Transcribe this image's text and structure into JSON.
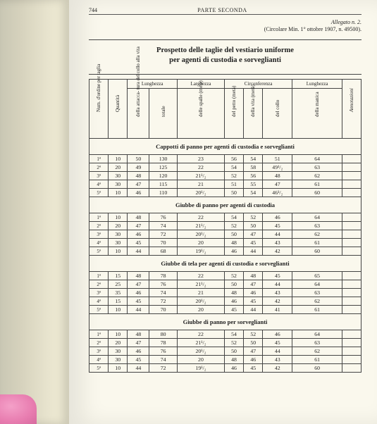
{
  "pageNumber": "744",
  "runningHead": "PARTE SECONDA",
  "allegatoLine": "Allegato n. 2.",
  "circolareLine": "(Circolare Min. 1° ottobre 1907, n. 49500).",
  "title1": "Prospetto delle taglie del vestiario uniforme",
  "title2": "per agenti di custodia e sorveglianti",
  "groupHeaders": {
    "lunghezza1": "Lunghezza",
    "larghezza": "Larghezza",
    "circonferenza": "Circonferenza",
    "lunghezza2": "Lunghezza"
  },
  "colHeaders": {
    "ordine": "Num. d'ordine per taglia",
    "quantita": "Quantità",
    "attacca": "della attacca-\ntura del collo\nalla vita",
    "totale": "totale",
    "spalle": "delle spalle\n(metà)",
    "petto": "del petto\n(metà)",
    "vita": "della vita\n(metà)",
    "collo": "del collo",
    "manica": "della manica",
    "annot": "Annotazioni"
  },
  "sections": [
    {
      "title": "Cappotti di panno per agenti di custodia e sorveglianti",
      "rows": [
        [
          "1ª",
          "10",
          "50",
          "130",
          "23",
          "56",
          "54",
          "51",
          "64"
        ],
        [
          "2ª",
          "20",
          "49",
          "125",
          "22",
          "54",
          "58",
          "49¹/₂",
          "63"
        ],
        [
          "3ª",
          "30",
          "48",
          "120",
          "21¹/₂",
          "52",
          "56",
          "48",
          "62"
        ],
        [
          "4ª",
          "30",
          "47",
          "115",
          "21",
          "51",
          "55",
          "47",
          "61"
        ],
        [
          "5ª",
          "10",
          "46",
          "110",
          "20¹/₂",
          "50",
          "54",
          "46¹/₂",
          "60"
        ]
      ]
    },
    {
      "title": "Giubbe di panno per agenti di custodia",
      "rows": [
        [
          "1ª",
          "10",
          "48",
          "76",
          "22",
          "54",
          "52",
          "46",
          "64"
        ],
        [
          "2ª",
          "20",
          "47",
          "74",
          "21¹/₂",
          "52",
          "50",
          "45",
          "63"
        ],
        [
          "3ª",
          "30",
          "46",
          "72",
          "20¹/₂",
          "50",
          "47",
          "44",
          "62"
        ],
        [
          "4ª",
          "30",
          "45",
          "70",
          "20",
          "48",
          "45",
          "43",
          "61"
        ],
        [
          "5ª",
          "10",
          "44",
          "68",
          "19¹/₂",
          "46",
          "44",
          "42",
          "60"
        ]
      ]
    },
    {
      "title": "Giubbe di tela per agenti di custodia e sorveglianti",
      "rows": [
        [
          "1ª",
          "15",
          "48",
          "78",
          "22",
          "52",
          "48",
          "45",
          "65"
        ],
        [
          "2ª",
          "25",
          "47",
          "76",
          "21¹/₂",
          "50",
          "47",
          "44",
          "64"
        ],
        [
          "3ª",
          "35",
          "46",
          "74",
          "21",
          "48",
          "46",
          "43",
          "63"
        ],
        [
          "4ª",
          "15",
          "45",
          "72",
          "20¹/₂",
          "46",
          "45",
          "42",
          "62"
        ],
        [
          "5ª",
          "10",
          "44",
          "70",
          "20",
          "45",
          "44",
          "41",
          "61"
        ]
      ]
    },
    {
      "title": "Giubbe di panno per sorveglianti",
      "rows": [
        [
          "1ª",
          "10",
          "48",
          "80",
          "22",
          "54",
          "52",
          "46",
          "64"
        ],
        [
          "2ª",
          "20",
          "47",
          "78",
          "21¹/₂",
          "52",
          "50",
          "45",
          "63"
        ],
        [
          "3ª",
          "30",
          "46",
          "76",
          "20¹/₂",
          "50",
          "47",
          "44",
          "62"
        ],
        [
          "4ª",
          "30",
          "45",
          "74",
          "20",
          "48",
          "46",
          "43",
          "61"
        ],
        [
          "5ª",
          "10",
          "44",
          "72",
          "19¹/₂",
          "46",
          "45",
          "42",
          "60"
        ]
      ]
    }
  ]
}
